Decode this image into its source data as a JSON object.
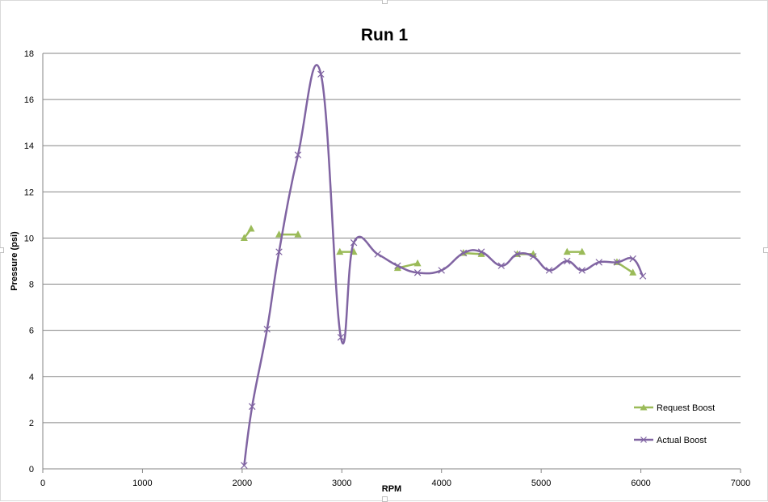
{
  "chart_data": {
    "type": "line",
    "title": "Run 1",
    "xlabel": "RPM",
    "ylabel": "Pressure (psi)",
    "xlim": [
      0,
      7000
    ],
    "ylim": [
      0,
      18
    ],
    "xticks": [
      0,
      1000,
      2000,
      3000,
      4000,
      5000,
      6000,
      7000
    ],
    "yticks": [
      0,
      2,
      4,
      6,
      8,
      10,
      12,
      14,
      16,
      18
    ],
    "grid": "horizontal",
    "legend_position": "bottom-right",
    "series": [
      {
        "name": "Request Boost",
        "color": "#9BBB59",
        "marker": "triangle",
        "smooth": false,
        "segments": [
          [
            [
              2020,
              10.0
            ],
            [
              2090,
              10.4
            ]
          ],
          [
            [
              2370,
              10.15
            ],
            [
              2560,
              10.15
            ]
          ],
          [
            [
              2980,
              9.4
            ],
            [
              3120,
              9.4
            ]
          ],
          [
            [
              3560,
              8.7
            ],
            [
              3760,
              8.9
            ]
          ],
          [
            [
              4220,
              9.35
            ],
            [
              4400,
              9.3
            ]
          ],
          [
            [
              4760,
              9.3
            ],
            [
              4920,
              9.3
            ]
          ],
          [
            [
              5260,
              9.4
            ],
            [
              5410,
              9.4
            ]
          ],
          [
            [
              5760,
              8.95
            ],
            [
              5920,
              8.5
            ]
          ]
        ]
      },
      {
        "name": "Actual Boost",
        "color": "#8064A2",
        "marker": "x",
        "smooth": true,
        "points": [
          [
            2020,
            0.15
          ],
          [
            2100,
            2.7
          ],
          [
            2250,
            6.05
          ],
          [
            2370,
            9.4
          ],
          [
            2560,
            13.6
          ],
          [
            2790,
            17.1
          ],
          [
            2990,
            5.7
          ],
          [
            3120,
            9.8
          ],
          [
            3360,
            9.3
          ],
          [
            3560,
            8.8
          ],
          [
            3760,
            8.5
          ],
          [
            4000,
            8.6
          ],
          [
            4220,
            9.35
          ],
          [
            4400,
            9.4
          ],
          [
            4600,
            8.8
          ],
          [
            4760,
            9.3
          ],
          [
            4920,
            9.2
          ],
          [
            5080,
            8.6
          ],
          [
            5260,
            9.0
          ],
          [
            5410,
            8.6
          ],
          [
            5580,
            8.95
          ],
          [
            5760,
            8.95
          ],
          [
            5920,
            9.1
          ],
          [
            6020,
            8.35
          ]
        ]
      }
    ]
  }
}
